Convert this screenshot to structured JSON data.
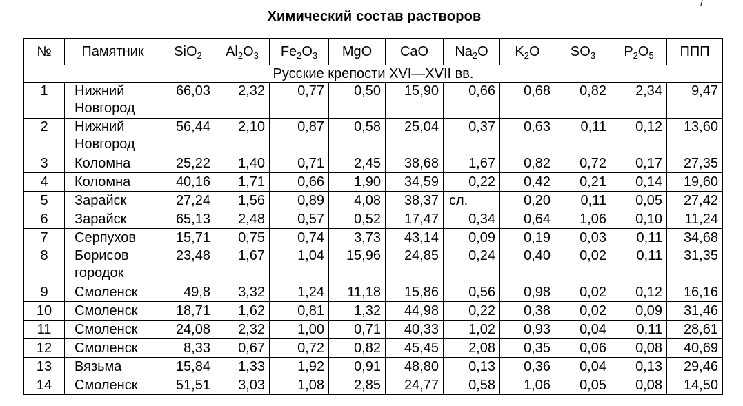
{
  "title": "Химический состав растворов",
  "corner_mark": "/",
  "columns": {
    "num": "№",
    "name": "Памятник",
    "sio2": {
      "main": "SiO",
      "sub": "2"
    },
    "al2o3": {
      "a": "Al",
      "s1": "2",
      "b": "O",
      "s2": "3"
    },
    "fe2o3": {
      "a": "Fe",
      "s1": "2",
      "b": "O",
      "s2": "3"
    },
    "mgo": "MgO",
    "cao": "CaO",
    "na2o": {
      "a": "Na",
      "s1": "2",
      "b": "O"
    },
    "k2o": {
      "a": "K",
      "s1": "2",
      "b": "O"
    },
    "so3": {
      "a": "SO",
      "s1": "3"
    },
    "p2o5": {
      "a": "P",
      "s1": "2",
      "b": "O",
      "s2": "5"
    },
    "ppp": "ППП"
  },
  "section": "Русские крепости XVI—XVII вв.",
  "rows": [
    {
      "n": "1",
      "name1": "Нижний",
      "name2": "Новгород",
      "v": [
        "66,03",
        "2,32",
        "0,77",
        "0,50",
        "15,90",
        "0,66",
        "0,68",
        "0,82",
        "2,34",
        "9,47"
      ]
    },
    {
      "n": "2",
      "name1": "Нижний",
      "name2": "Новгород",
      "v": [
        "56,44",
        "2,10",
        "0,87",
        "0,58",
        "25,04",
        "0,37",
        "0,63",
        "0,11",
        "0,12",
        "13,60"
      ]
    },
    {
      "n": "3",
      "name1": "Коломна",
      "v": [
        "25,22",
        "1,40",
        "0,71",
        "2,45",
        "38,68",
        "1,67",
        "0,82",
        "0,72",
        "0,17",
        "27,35"
      ]
    },
    {
      "n": "4",
      "name1": "Коломна",
      "v": [
        "40,16",
        "1,71",
        "0,66",
        "1,90",
        "34,59",
        "0,22",
        "0,42",
        "0,21",
        "0,14",
        "19,60"
      ]
    },
    {
      "n": "5",
      "name1": "Зарайск",
      "v": [
        "27,24",
        "1,56",
        "0,89",
        "4,08",
        "38,37",
        "сл.",
        "0,20",
        "0,11",
        "0,05",
        "27,42"
      ]
    },
    {
      "n": "6",
      "name1": "Зарайск",
      "v": [
        "65,13",
        "2,48",
        "0,57",
        "0,52",
        "17,47",
        "0,34",
        "0,64",
        "1,06",
        "0,10",
        "11,24"
      ]
    },
    {
      "n": "7",
      "name1": "Серпухов",
      "v": [
        "15,71",
        "0,75",
        "0,74",
        "3,73",
        "43,14",
        "0,09",
        "0,19",
        "0,03",
        "0,11",
        "34,68"
      ]
    },
    {
      "n": "8",
      "name1": "Борисов",
      "name2": "городок",
      "v": [
        "23,48",
        "1,67",
        "1,04",
        "15,96",
        "24,85",
        "0,24",
        "0,40",
        "0,02",
        "0,11",
        "31,35"
      ]
    },
    {
      "n": "9",
      "name1": "Смоленск",
      "v": [
        "49,8",
        "3,32",
        "1,24",
        "11,18",
        "15,86",
        "0,56",
        "0,98",
        "0,02",
        "0,12",
        "16,16"
      ]
    },
    {
      "n": "10",
      "name1": "Смоленск",
      "v": [
        "18,71",
        "1,62",
        "0,81",
        "1,32",
        "44,98",
        "0,22",
        "0,38",
        "0,02",
        "0,09",
        "31,46"
      ]
    },
    {
      "n": "11",
      "name1": "Смоленск",
      "v": [
        "24,08",
        "2,32",
        "1,00",
        "0,71",
        "40,33",
        "1,02",
        "0,93",
        "0,04",
        "0,11",
        "28,61"
      ]
    },
    {
      "n": "12",
      "name1": "Смоленск",
      "v": [
        "8,33",
        "0,67",
        "0,72",
        "0,82",
        "45,45",
        "2,08",
        "0,35",
        "0,06",
        "0,08",
        "40,69"
      ]
    },
    {
      "n": "13",
      "name1": "Вязьма",
      "v": [
        "15,84",
        "1,33",
        "1,92",
        "0,91",
        "48,80",
        "0,13",
        "0,36",
        "0,04",
        "0,13",
        "29,46"
      ]
    },
    {
      "n": "14",
      "name1": "Смоленск",
      "v": [
        "51,51",
        "3,03",
        "1,08",
        "2,85",
        "24,77",
        "0,58",
        "1,06",
        "0,05",
        "0,08",
        "14,50"
      ]
    }
  ]
}
